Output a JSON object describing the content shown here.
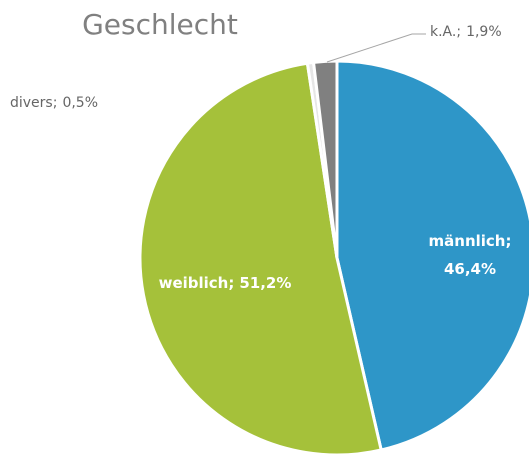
{
  "chart_data": {
    "type": "pie",
    "title": "Geschlecht",
    "categories": [
      "männlich",
      "weiblich",
      "divers",
      "k.A."
    ],
    "values": [
      46.4,
      51.2,
      0.5,
      1.9
    ],
    "value_labels": [
      "46,4%",
      "51,2%",
      "0,5%",
      "1,9%"
    ],
    "label_separator": ";",
    "colors": [
      "#2e96c8",
      "#a5c13a",
      "#e6e6e6",
      "#808080"
    ]
  }
}
